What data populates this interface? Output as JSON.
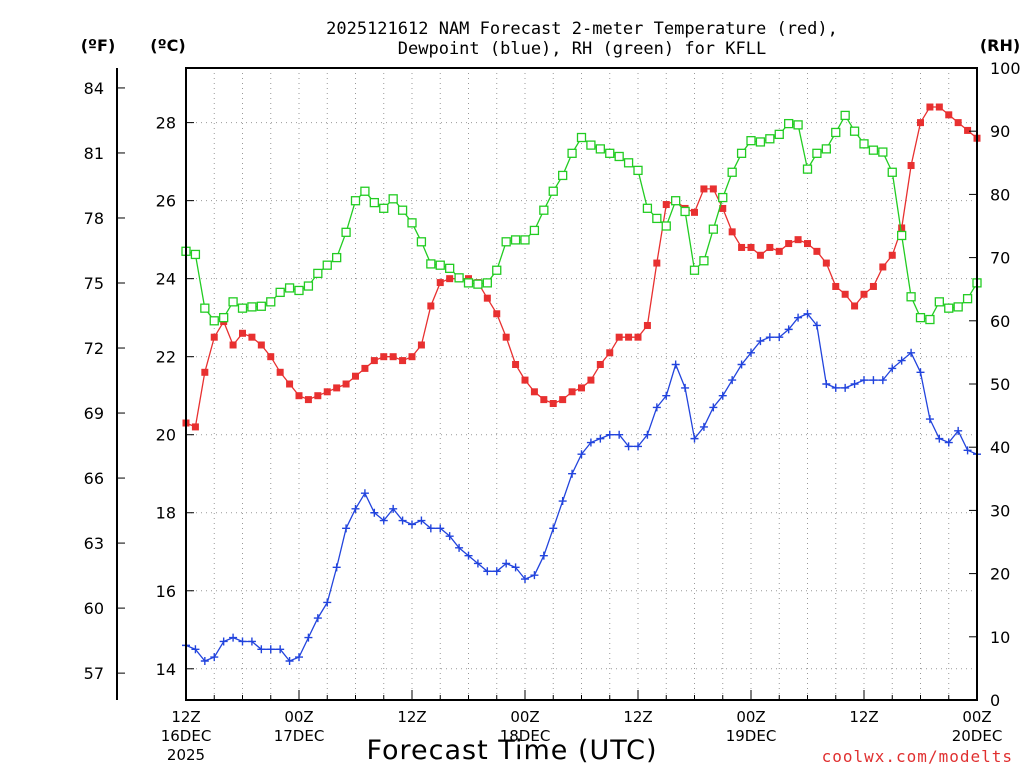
{
  "chart_data": {
    "type": "line",
    "title": [
      "2025121612 NAM Forecast 2-meter Temperature (red),",
      "Dewpoint (blue), RH (green) for KFLL"
    ],
    "xlabel": "Forecast Time (UTC)",
    "credit": "coolwx.com/modelts",
    "units": {
      "fahrenheit": "(ºF)",
      "celsius": "(ºC)",
      "rh": "(RH)"
    },
    "x_range_hours": [
      0,
      84
    ],
    "x_ticks": [
      {
        "hour": 0,
        "lines": [
          "12Z",
          "16DEC",
          "2025"
        ]
      },
      {
        "hour": 12,
        "lines": [
          "00Z",
          "17DEC"
        ]
      },
      {
        "hour": 24,
        "lines": [
          "12Z"
        ]
      },
      {
        "hour": 36,
        "lines": [
          "00Z",
          "18DEC"
        ]
      },
      {
        "hour": 48,
        "lines": [
          "12Z"
        ]
      },
      {
        "hour": 60,
        "lines": [
          "00Z",
          "19DEC"
        ]
      },
      {
        "hour": 72,
        "lines": [
          "12Z"
        ]
      },
      {
        "hour": 84,
        "lines": [
          "00Z",
          "20DEC"
        ]
      }
    ],
    "celsius_axis": {
      "range": [
        13.2,
        29.4
      ],
      "ticks": [
        14,
        16,
        18,
        20,
        22,
        24,
        26,
        28
      ]
    },
    "fahrenheit_ticks": [
      57,
      60,
      63,
      66,
      69,
      72,
      75,
      78,
      81,
      84
    ],
    "rh_axis": {
      "range": [
        0,
        100
      ],
      "ticks": [
        0,
        10,
        20,
        30,
        40,
        50,
        60,
        70,
        80,
        90,
        100
      ]
    },
    "hours": [
      0,
      1,
      2,
      3,
      4,
      5,
      6,
      7,
      8,
      9,
      10,
      11,
      12,
      13,
      14,
      15,
      16,
      17,
      18,
      19,
      20,
      21,
      22,
      23,
      24,
      25,
      26,
      27,
      28,
      29,
      30,
      31,
      32,
      33,
      34,
      35,
      36,
      37,
      38,
      39,
      40,
      41,
      42,
      43,
      44,
      45,
      46,
      47,
      48,
      49,
      50,
      51,
      52,
      53,
      54,
      55,
      56,
      57,
      58,
      59,
      60,
      61,
      62,
      63,
      64,
      65,
      66,
      67,
      68,
      69,
      70,
      71,
      72,
      73,
      74,
      75,
      76,
      77,
      78,
      79,
      80,
      81,
      82,
      83,
      84
    ],
    "series": [
      {
        "name": "Temperature",
        "unit": "C",
        "color": "#e83030",
        "marker": "filled-square",
        "values": [
          20.3,
          20.2,
          21.6,
          22.5,
          22.9,
          22.3,
          22.6,
          22.5,
          22.3,
          22.0,
          21.6,
          21.3,
          21.0,
          20.9,
          21.0,
          21.1,
          21.2,
          21.3,
          21.5,
          21.7,
          21.9,
          22.0,
          22.0,
          21.9,
          22.0,
          22.3,
          23.3,
          23.9,
          24.0,
          24.0,
          24.0,
          23.9,
          23.5,
          23.1,
          22.5,
          21.8,
          21.4,
          21.1,
          20.9,
          20.8,
          20.9,
          21.1,
          21.2,
          21.4,
          21.8,
          22.1,
          22.5,
          22.5,
          22.5,
          22.8,
          24.4,
          25.9,
          26.0,
          25.8,
          25.7,
          26.3,
          26.3,
          25.8,
          25.2,
          24.8,
          24.8,
          24.6,
          24.8,
          24.7,
          24.9,
          25.0,
          24.9,
          24.7,
          24.4,
          23.8,
          23.6,
          23.3,
          23.6,
          23.8,
          24.3,
          24.6,
          25.3,
          26.9,
          28.0,
          28.4,
          28.4,
          28.2,
          28.0,
          27.8,
          27.6
        ]
      },
      {
        "name": "Dewpoint",
        "unit": "C",
        "color": "#2244dd",
        "marker": "plus",
        "values": [
          14.6,
          14.5,
          14.2,
          14.3,
          14.7,
          14.8,
          14.7,
          14.7,
          14.5,
          14.5,
          14.5,
          14.2,
          14.3,
          14.8,
          15.3,
          15.7,
          16.6,
          17.6,
          18.1,
          18.5,
          18.0,
          17.8,
          18.1,
          17.8,
          17.7,
          17.8,
          17.6,
          17.6,
          17.4,
          17.1,
          16.9,
          16.7,
          16.5,
          16.5,
          16.7,
          16.6,
          16.3,
          16.4,
          16.9,
          17.6,
          18.3,
          19.0,
          19.5,
          19.8,
          19.9,
          20.0,
          20.0,
          19.7,
          19.7,
          20.0,
          20.7,
          21.0,
          21.8,
          21.2,
          19.9,
          20.2,
          20.7,
          21.0,
          21.4,
          21.8,
          22.1,
          22.4,
          22.5,
          22.5,
          22.7,
          23.0,
          23.1,
          22.8,
          21.3,
          21.2,
          21.2,
          21.3,
          21.4,
          21.4,
          21.4,
          21.7,
          21.9,
          22.1,
          21.6,
          20.4,
          19.9,
          19.8,
          20.1,
          19.6,
          19.5
        ]
      },
      {
        "name": "RH",
        "unit": "%",
        "color": "#22cc22",
        "marker": "open-square",
        "values": [
          71.0,
          70.5,
          62.0,
          60.0,
          60.5,
          63.0,
          62.0,
          62.2,
          62.3,
          63.0,
          64.5,
          65.2,
          64.8,
          65.5,
          67.5,
          68.8,
          70.0,
          74.0,
          79.0,
          80.5,
          78.7,
          77.8,
          79.3,
          77.5,
          75.5,
          72.5,
          69.0,
          68.8,
          68.3,
          66.8,
          66.0,
          65.8,
          66.0,
          68.0,
          72.5,
          72.8,
          72.8,
          74.3,
          77.5,
          80.5,
          83.0,
          86.5,
          89.0,
          87.8,
          87.2,
          86.5,
          86.0,
          85.0,
          83.8,
          77.8,
          76.2,
          75.0,
          79.0,
          77.3,
          68.0,
          69.5,
          74.5,
          79.5,
          83.5,
          86.5,
          88.5,
          88.3,
          88.8,
          89.5,
          91.2,
          91.0,
          84.0,
          86.5,
          87.2,
          89.8,
          92.5,
          90.0,
          88.0,
          87.0,
          86.7,
          83.5,
          73.5,
          63.8,
          60.5,
          60.2,
          63.0,
          62.0,
          62.2,
          63.5,
          66.0
        ]
      }
    ]
  }
}
